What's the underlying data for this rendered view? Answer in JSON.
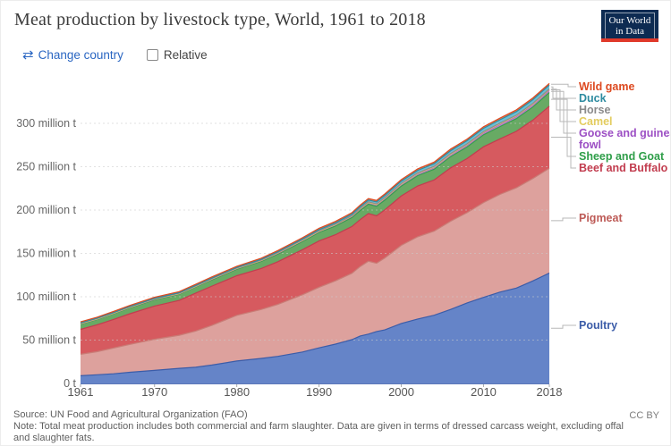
{
  "header": {
    "title": "Meat production by livestock type, World, 1961 to 2018",
    "logo": {
      "line1": "Our World",
      "line2": "in Data"
    }
  },
  "controls": {
    "change_country": "Change country",
    "relative_label": "Relative"
  },
  "footer": {
    "source": "Source: UN Food and Agricultural Organization (FAO)",
    "note": "Note: Total meat production includes both commercial and farm slaughter. Data are given in terms of dressed carcass weight, excluding offal and slaughter fats.",
    "license": "CC BY"
  },
  "colors": {
    "accent_blue": "#2a66c2",
    "logo_navy": "#0d2b52",
    "logo_red": "#e0392a",
    "gridline": "#cccccc",
    "axis_text": "#666666",
    "connector": "#b8b8b8"
  },
  "chart_data": {
    "type": "area",
    "stacked": true,
    "title": "Meat production by livestock type, World, 1961 to 2018",
    "xlabel": "",
    "ylabel": "",
    "unit": "million t",
    "xlim": [
      1961,
      2018
    ],
    "ylim": [
      0,
      350
    ],
    "grid": "dashed-horizontal",
    "legend_position": "right",
    "x_ticks": [
      1961,
      1970,
      1980,
      1990,
      2000,
      2010,
      2018
    ],
    "y_ticks": [
      {
        "value": 0,
        "label": "0 t"
      },
      {
        "value": 50,
        "label": "50 million t"
      },
      {
        "value": 100,
        "label": "100 million t"
      },
      {
        "value": 150,
        "label": "150 million t"
      },
      {
        "value": 200,
        "label": "200 million t"
      },
      {
        "value": 250,
        "label": "250 million t"
      },
      {
        "value": 300,
        "label": "300 million t"
      }
    ],
    "x": [
      1961,
      1963,
      1965,
      1967,
      1970,
      1973,
      1975,
      1977,
      1980,
      1983,
      1985,
      1988,
      1990,
      1992,
      1994,
      1995,
      1996,
      1997,
      1998,
      2000,
      2002,
      2004,
      2006,
      2008,
      2010,
      2012,
      2014,
      2016,
      2018
    ],
    "series": [
      {
        "name": "Poultry",
        "legend_lines": [
          "Poultry"
        ],
        "fill": "#6584c8",
        "stroke": "#3b5ca8",
        "label_color": "#3b5ca8",
        "values": [
          8.9,
          10.0,
          11.1,
          12.9,
          15.1,
          17.4,
          18.7,
          21.2,
          25.9,
          28.9,
          31.2,
          36.3,
          41.0,
          45.4,
          50.5,
          54.7,
          56.9,
          59.9,
          61.8,
          69.2,
          74.3,
          78.7,
          85.4,
          92.9,
          99.3,
          105.4,
          110.0,
          118.2,
          127.3
        ]
      },
      {
        "name": "Pigmeat",
        "legend_lines": [
          "Pigmeat"
        ],
        "fill": "#dda19d",
        "stroke": "#c97c76",
        "label_color": "#bd5a56",
        "values": [
          24.7,
          26.6,
          29.7,
          32.2,
          35.8,
          38.2,
          41.7,
          45.9,
          52.7,
          56.5,
          59.9,
          66.1,
          69.9,
          72.9,
          76.6,
          80.1,
          84.0,
          78.8,
          82.9,
          90.1,
          94.9,
          97.0,
          101.7,
          104.1,
          109.4,
          112.6,
          115.7,
          118.2,
          120.9
        ]
      },
      {
        "name": "Beef and Buffalo",
        "legend_lines": [
          "Beef and Buffalo"
        ],
        "fill": "#d65a5f",
        "stroke": "#c23d4f",
        "label_color": "#c23d4f",
        "values": [
          28.8,
          31.0,
          33.0,
          35.3,
          38.4,
          40.2,
          43.8,
          45.3,
          45.6,
          47.3,
          49.3,
          51.9,
          53.4,
          53.2,
          53.9,
          54.2,
          55.1,
          54.6,
          55.5,
          56.9,
          58.6,
          59.0,
          61.6,
          62.4,
          64.3,
          64.1,
          65.1,
          67.3,
          71.6
        ]
      },
      {
        "name": "Sheep and Goat",
        "legend_lines": [
          "Sheep and Goat"
        ],
        "fill": "#68aa64",
        "stroke": "#379e4d",
        "label_color": "#2f9e49",
        "values": [
          6.0,
          6.2,
          6.5,
          6.8,
          7.2,
          7.1,
          7.1,
          7.3,
          7.6,
          8.2,
          8.9,
          9.5,
          9.9,
          10.1,
          10.3,
          10.5,
          10.8,
          11.0,
          11.2,
          11.4,
          11.9,
          12.4,
          13.0,
          13.4,
          13.8,
          14.2,
          14.7,
          15.2,
          15.8
        ]
      },
      {
        "name": "Goose and guinea fowl",
        "legend_lines": [
          "Goose and guinea",
          "fowl"
        ],
        "fill": "#c181d1",
        "stroke": "#9c4fc4",
        "label_color": "#9c4fc4",
        "values": [
          0.4,
          0.4,
          0.4,
          0.5,
          0.5,
          0.5,
          0.5,
          0.6,
          0.6,
          0.7,
          0.8,
          0.9,
          1.0,
          1.2,
          1.4,
          1.6,
          1.7,
          1.8,
          1.9,
          2.0,
          2.1,
          2.2,
          2.3,
          2.4,
          2.5,
          2.6,
          2.6,
          2.7,
          2.7
        ]
      },
      {
        "name": "Camel",
        "legend_lines": [
          "Camel"
        ],
        "fill": "#efd9a2",
        "stroke": "#e7ce66",
        "label_color": "#e3cc5f",
        "values": [
          0.12,
          0.13,
          0.14,
          0.15,
          0.17,
          0.19,
          0.2,
          0.22,
          0.25,
          0.26,
          0.27,
          0.28,
          0.28,
          0.29,
          0.29,
          0.3,
          0.3,
          0.3,
          0.3,
          0.3,
          0.33,
          0.36,
          0.38,
          0.42,
          0.45,
          0.5,
          0.55,
          0.6,
          0.63
        ]
      },
      {
        "name": "Horse",
        "legend_lines": [
          "Horse"
        ],
        "fill": "#ababab",
        "stroke": "#8b8b8b",
        "label_color": "#8b8b8b",
        "values": [
          0.56,
          0.55,
          0.54,
          0.53,
          0.5,
          0.49,
          0.5,
          0.5,
          0.5,
          0.52,
          0.54,
          0.56,
          0.6,
          0.63,
          0.65,
          0.67,
          0.68,
          0.69,
          0.7,
          0.7,
          0.72,
          0.74,
          0.75,
          0.76,
          0.76,
          0.77,
          0.78,
          0.79,
          0.8
        ]
      },
      {
        "name": "Duck",
        "legend_lines": [
          "Duck"
        ],
        "fill": "#6ac0d6",
        "stroke": "#2e8ba0",
        "label_color": "#2e8ba0",
        "values": [
          0.4,
          0.43,
          0.46,
          0.48,
          0.5,
          0.55,
          0.6,
          0.65,
          0.7,
          0.85,
          1.0,
          1.15,
          1.3,
          1.5,
          1.7,
          1.9,
          2.1,
          2.3,
          2.5,
          2.7,
          2.9,
          3.1,
          3.3,
          3.6,
          3.8,
          4.0,
          4.2,
          4.3,
          4.4
        ]
      },
      {
        "name": "Wild game",
        "legend_lines": [
          "Wild game"
        ],
        "fill": "#e87a50",
        "stroke": "#dd4a21",
        "label_color": "#dd4a21",
        "values": [
          1.1,
          1.12,
          1.15,
          1.17,
          1.2,
          1.22,
          1.25,
          1.27,
          1.3,
          1.35,
          1.4,
          1.5,
          1.6,
          1.65,
          1.7,
          1.72,
          1.74,
          1.76,
          1.78,
          1.8,
          1.82,
          1.85,
          1.88,
          1.9,
          1.9,
          1.93,
          1.95,
          1.98,
          2.0
        ]
      }
    ]
  }
}
